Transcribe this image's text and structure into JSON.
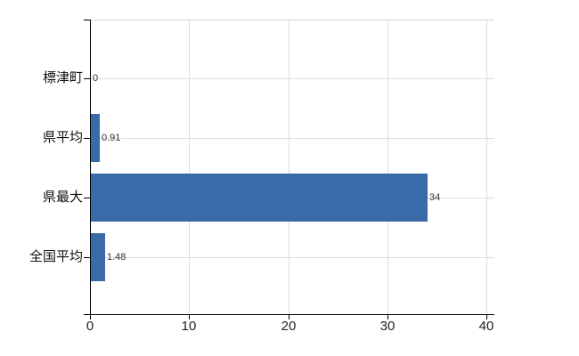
{
  "chart_data": {
    "type": "bar",
    "orientation": "horizontal",
    "title": "",
    "xlabel": "",
    "ylabel": "",
    "categories": [
      "標津町",
      "県平均",
      "県最大",
      "全国平均"
    ],
    "values": [
      0,
      0.91,
      34,
      1.48
    ],
    "value_labels": [
      "0",
      "0.91",
      "34",
      "1.48"
    ],
    "xlim": [
      0,
      40
    ],
    "x_ticks": [
      0,
      10,
      20,
      30,
      40
    ],
    "x_tick_labels": [
      "0",
      "10",
      "20",
      "30",
      "40"
    ],
    "grid": true,
    "legend": false,
    "colors": {
      "bar": "#3B6AA9",
      "gridline": "#DADED8",
      "top_border": "#D5D5D5",
      "axis": "#000000",
      "value_text": "#333333",
      "tick_text": "#222222",
      "category_text": "#111111",
      "background": "#FFFFFF"
    }
  }
}
